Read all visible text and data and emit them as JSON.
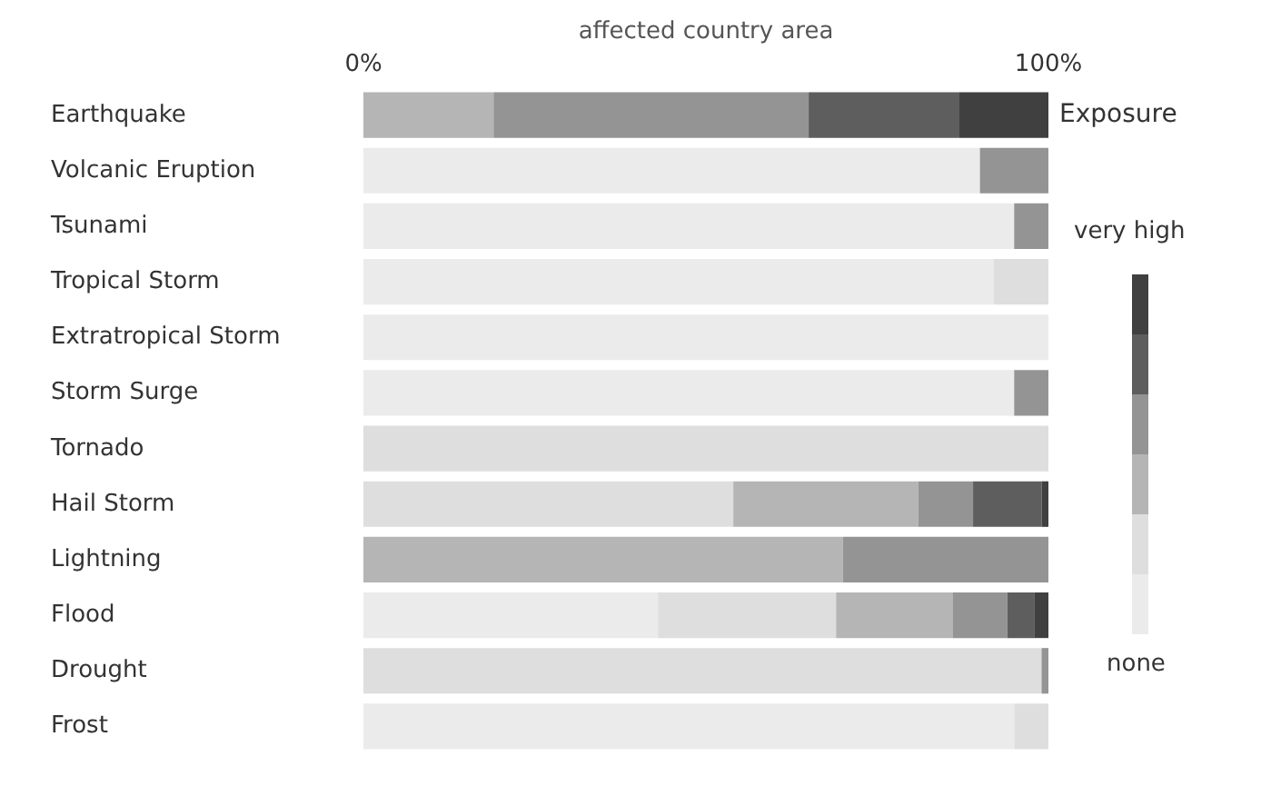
{
  "chart_data": {
    "type": "bar",
    "orientation": "horizontal",
    "stacked": true,
    "xlabel": "affected country area",
    "legend_title": "Exposure",
    "legend": "right",
    "grid": false,
    "categories": [
      "Earthquake",
      "Volcanic Eruption",
      "Tsunami",
      "Tropical Storm",
      "Extratropical Storm",
      "Storm Surge",
      "Tornado",
      "Hail Storm",
      "Lightning",
      "Flood",
      "Drought",
      "Frost"
    ],
    "xlim": [
      0,
      100
    ],
    "xticks": [
      {
        "value": 0,
        "label": "0%"
      },
      {
        "value": 100,
        "label": "100%"
      }
    ],
    "series": [
      {
        "name": "none",
        "color": "#ebebeb",
        "values": [
          0,
          90,
          95,
          92,
          100,
          95,
          0,
          0,
          0,
          43,
          0,
          95
        ]
      },
      {
        "color": "#dedede",
        "values": [
          0,
          0,
          0,
          8,
          0,
          0,
          100,
          54,
          0,
          26,
          99,
          5
        ]
      },
      {
        "color": "#b5b5b5",
        "values": [
          19,
          0,
          0,
          0,
          0,
          0,
          0,
          27,
          70,
          17,
          0,
          0
        ]
      },
      {
        "color": "#949494",
        "values": [
          46,
          10,
          5,
          0,
          0,
          5,
          0,
          8,
          30,
          8,
          1,
          0
        ]
      },
      {
        "color": "#5e5e5e",
        "values": [
          22,
          0,
          0,
          0,
          0,
          0,
          0,
          10,
          0,
          4,
          0,
          0
        ]
      },
      {
        "name": "very high",
        "color": "#404040",
        "values": [
          13,
          0,
          0,
          0,
          0,
          0,
          0,
          1,
          0,
          2,
          0,
          0
        ]
      }
    ]
  }
}
